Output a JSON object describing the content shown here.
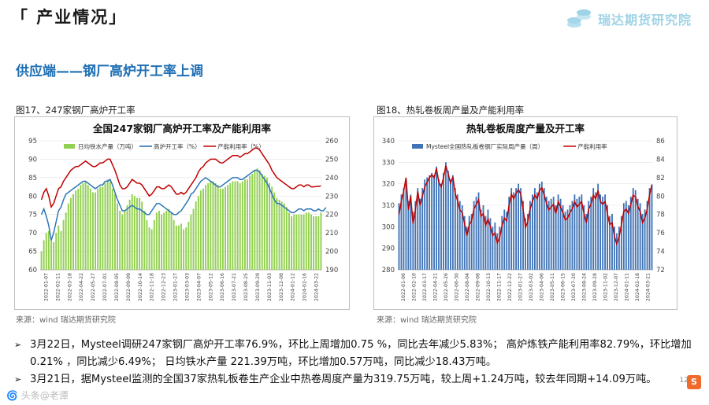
{
  "header": {
    "section_title": "「 产业情况」",
    "brand_name": "瑞达期货研究院"
  },
  "subtitle": "供应端——钢厂高炉开工率上调",
  "figures": [
    {
      "caption": "图17、247家钢厂高炉开工率",
      "source": "来源：wind   瑞达期货研究院"
    },
    {
      "caption": "图18、热轧卷板周产量及产能利用率",
      "source": "来源：wind   瑞达期货研究院"
    }
  ],
  "bullets": [
    "3月22日，Mysteel调研247家钢厂高炉开工率76.9%，环比上周增加0.75 %，同比去年减少5.83%； 高炉炼铁产能利用率82.79%，环比增加0.21% ，同比减少6.49%； 日均铁水产量 221.39万吨，环比增加0.57万吨，同比减少18.43万吨。",
    "3月21日，据Mysteel监测的全国37家热轧板卷生产企业中热卷周度产量为319.75万吨，较上周+1.24万吨，较去年同期+14.09万吨。"
  ],
  "bullet_mark": "➢",
  "page_number": "12",
  "watermark": "🌀 头条@老谭",
  "sogou_badge": "S",
  "colors": {
    "accent_blue": "#1f6fb4",
    "bar_green": "#92d050",
    "bar_blue": "#2e75b6",
    "line_red": "#c00000"
  },
  "chart_data": [
    {
      "type": "bar",
      "title": "全国247家钢厂高炉开工率及产能利用率",
      "legend": [
        "日均铁水产量（万吨）",
        "高炉开工率（%）",
        "产能利用率（%）"
      ],
      "legend_position": "top",
      "left_axis": {
        "ylim": [
          60,
          95
        ],
        "ticks": [
          60,
          65,
          70,
          75,
          80,
          85,
          90,
          95
        ]
      },
      "right_axis": {
        "ylim": [
          190,
          260
        ],
        "ticks": [
          190,
          200,
          210,
          220,
          230,
          240,
          250,
          260
        ]
      },
      "x_ticks": [
        "2022-01-07",
        "2022-02-11",
        "2022-03-18",
        "2022-04-22",
        "2022-05-27",
        "2022-07-01",
        "2022-08-05",
        "2022-09-09",
        "2022-10-14",
        "2022-11-18",
        "2022-12-23",
        "2023-01-27",
        "2023-03-03",
        "2023-04-07",
        "2023-05-12",
        "2023-06-16",
        "2023-07-21",
        "2023-08-25",
        "2023-09-29",
        "2023-11-03",
        "2023-12-08",
        "2024-01-12",
        "2024-02-16",
        "2024-03-22"
      ],
      "series": [
        {
          "name": "日均铁水产量（万吨）",
          "axis": "right",
          "values": [
            200,
            206,
            210,
            211,
            207,
            205,
            210,
            214,
            211,
            217,
            221,
            226,
            229,
            231,
            233,
            234,
            236,
            237,
            238,
            236,
            234,
            232,
            232,
            234,
            235,
            235,
            237,
            239,
            238,
            234,
            231,
            226,
            222,
            220,
            222,
            225,
            228,
            231,
            230,
            229,
            229,
            227,
            222,
            217,
            213,
            212,
            217,
            221,
            222,
            220,
            221,
            222,
            223,
            221,
            217,
            214,
            214,
            215,
            212,
            213,
            216,
            220,
            223,
            227,
            230,
            233,
            234,
            236,
            237,
            238,
            238,
            237,
            236,
            234,
            234,
            235,
            236,
            237,
            238,
            238,
            238,
            237,
            238,
            239,
            239,
            241,
            242,
            244,
            245,
            244,
            242,
            241,
            240,
            237,
            235,
            232,
            229,
            228,
            227,
            226,
            224,
            221,
            219,
            220,
            220,
            220,
            220,
            220,
            221,
            221,
            220,
            219,
            219,
            219,
            221
          ]
        },
        {
          "name": "高炉开工率（%）",
          "axis": "left",
          "values": [
            75,
            76.5,
            74.5,
            72,
            68,
            70,
            73,
            76,
            77,
            79,
            80.5,
            81,
            81.5,
            82,
            82.5,
            83,
            83.5,
            84,
            84,
            83.5,
            83,
            82.5,
            82,
            82.5,
            83,
            83,
            84,
            84,
            84.5,
            83,
            81,
            79,
            77.5,
            76,
            76,
            76.5,
            77,
            77.5,
            77,
            76.5,
            76.5,
            76,
            75.5,
            75,
            75,
            76,
            77,
            78,
            78,
            77.5,
            77,
            76.5,
            76,
            75.5,
            75,
            75,
            75.5,
            76,
            77,
            78,
            79,
            80.5,
            81,
            82,
            83,
            84,
            84.5,
            85,
            84.5,
            84,
            83.5,
            83,
            82.5,
            82.5,
            83,
            83.5,
            84,
            84.5,
            85,
            85,
            85,
            84.5,
            84.5,
            85,
            85.5,
            86,
            86.5,
            87,
            87,
            86.5,
            85.5,
            84.5,
            83.5,
            82,
            80.5,
            79,
            78,
            78,
            77.5,
            77,
            76.5,
            76,
            75.5,
            75.5,
            76,
            76.5,
            76.5,
            76,
            76.5,
            76.5,
            76.5,
            76,
            76,
            76.5,
            76,
            76,
            76.9
          ]
        },
        {
          "name": "产能利用率（%）",
          "axis": "left",
          "values": [
            79,
            81,
            82,
            80,
            77,
            78,
            80,
            82,
            82.5,
            84,
            85,
            86,
            87,
            87.5,
            88,
            88,
            88.5,
            89,
            89.5,
            89,
            88.5,
            88,
            88,
            88.5,
            89,
            89,
            89.5,
            90,
            90,
            88.5,
            87,
            85,
            83,
            82,
            82,
            82.5,
            83.5,
            84.5,
            84,
            83.5,
            83.5,
            83,
            82,
            81,
            80,
            80.5,
            81.5,
            82.5,
            82.5,
            82,
            82,
            82.5,
            83,
            82.5,
            81.5,
            80.5,
            80.5,
            81,
            80.5,
            81,
            82,
            83,
            84,
            85,
            86.5,
            87.5,
            88,
            89,
            89.5,
            90,
            90,
            90,
            89.5,
            89,
            89,
            89.5,
            90,
            90.5,
            91,
            91,
            91,
            90.5,
            91,
            91.5,
            91.5,
            92,
            92.5,
            93,
            93,
            92.5,
            91.5,
            90.5,
            89.5,
            88.5,
            87,
            86,
            85,
            84.5,
            84,
            83.5,
            83,
            82.5,
            82,
            82,
            82.5,
            83,
            83,
            82.5,
            83,
            83,
            82.5,
            82.5,
            82.6,
            82.6,
            82.79
          ]
        }
      ]
    },
    {
      "type": "bar",
      "title": "热轧卷板周度产量及开工率",
      "legend": [
        "Mysteel全国热轧板卷钢厂实际周产量（周）",
        "产能利用率"
      ],
      "legend_position": "top",
      "left_axis": {
        "ylim": [
          280,
          340
        ],
        "ticks": [
          280,
          290,
          300,
          310,
          320,
          330,
          340
        ]
      },
      "right_axis": {
        "ylim": [
          72,
          86
        ],
        "ticks": [
          72,
          74,
          76,
          78,
          80,
          82,
          84,
          86
        ]
      },
      "x_ticks": [
        "2022-01-06",
        "2022-02-10",
        "2022-03-17",
        "2022-04-21",
        "2022-05-26",
        "2022-06-30",
        "2022-08-04",
        "2022-09-08",
        "2022-10-13",
        "2022-11-17",
        "2022-12-22",
        "2023-01-27",
        "2023-03-02",
        "2023-04-06",
        "2023-05-11",
        "2023-06-15",
        "2023-07-20",
        "2023-08-24",
        "2023-09-28",
        "2023-11-02",
        "2023-12-07",
        "2024-01-11",
        "2024-02-18",
        "2024-03-21"
      ],
      "series": [
        {
          "name": "Mysteel全国热轧板卷钢厂实际周产量（周）",
          "axis": "left",
          "values": [
            311,
            315,
            318,
            320,
            312,
            315,
            307,
            312,
            318,
            313,
            318,
            322,
            323,
            324,
            325,
            324,
            328,
            322,
            320,
            325,
            330,
            326,
            322,
            324,
            318,
            315,
            312,
            310,
            305,
            300,
            305,
            306,
            312,
            314,
            316,
            308,
            310,
            305,
            308,
            304,
            300,
            302,
            297,
            300,
            305,
            308,
            307,
            314,
            318,
            316,
            318,
            320,
            318,
            312,
            304,
            306,
            312,
            315,
            318,
            316,
            320,
            321,
            318,
            314,
            312,
            313,
            314,
            310,
            315,
            313,
            310,
            307,
            308,
            310,
            312,
            315,
            313,
            314,
            315,
            310,
            306,
            312,
            314,
            318,
            316,
            320,
            315,
            314,
            315,
            310,
            305,
            306,
            300,
            297,
            300,
            305,
            311,
            312,
            310,
            314,
            318,
            317,
            313,
            311,
            306,
            308,
            312,
            318,
            319.75
          ]
        },
        {
          "name": "产能利用率",
          "axis": "right",
          "values": [
            78,
            79.5,
            80.5,
            82,
            78.5,
            80,
            77,
            78.5,
            80.5,
            79,
            80,
            81,
            81.5,
            82,
            82.3,
            82,
            83,
            81.5,
            81,
            82,
            83.3,
            82.4,
            81.4,
            82.1,
            80.3,
            79.5,
            78.5,
            78.2,
            77,
            75.7,
            76.9,
            77.3,
            78.6,
            79.1,
            79.6,
            77.8,
            78.1,
            76.8,
            77.5,
            76.7,
            75.7,
            76,
            74.9,
            75.5,
            76.8,
            77.6,
            77.3,
            79,
            80.2,
            79.7,
            80.3,
            80.7,
            80.2,
            78.6,
            76.6,
            77.2,
            78.6,
            79.4,
            80.1,
            79.7,
            80.6,
            80.9,
            80.1,
            79.2,
            78.5,
            78.8,
            79.1,
            78.1,
            79.4,
            78.8,
            78.2,
            77.4,
            77.6,
            78.2,
            78.6,
            79.4,
            78.8,
            79.1,
            79.4,
            78.1,
            77.1,
            78.6,
            79.1,
            80.1,
            79.7,
            80.6,
            79.4,
            79.1,
            79.4,
            78.1,
            76.9,
            77.1,
            75.6,
            74.8,
            75.6,
            76.9,
            78.3,
            78.6,
            78.1,
            79.1,
            80.1,
            79.9,
            78.9,
            78.3,
            77.1,
            77.6,
            78.6,
            80.1,
            81.2
          ]
        }
      ]
    }
  ]
}
